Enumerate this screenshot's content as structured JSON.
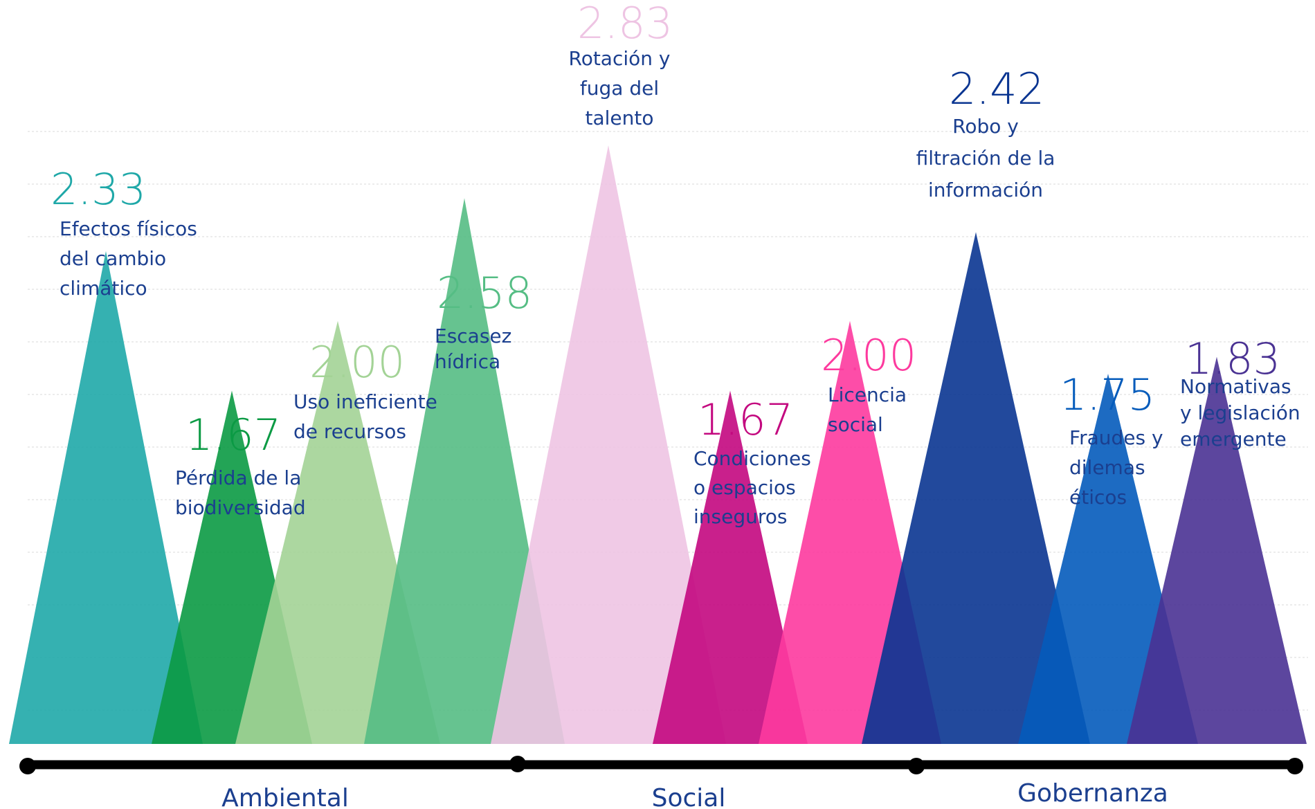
{
  "chart_data": {
    "type": "area",
    "title": "",
    "xlabel": "",
    "ylabel": "",
    "ylim": [
      0,
      2.9
    ],
    "grid": true,
    "categories": [
      "Ambiental",
      "Social",
      "Gobernanza"
    ],
    "series": [
      {
        "group": "Ambiental",
        "label_lines": [
          "Efectos físicos",
          "del cambio",
          "climático"
        ],
        "value": 2.33,
        "value_text": "2.33",
        "color": "#1fa8a8"
      },
      {
        "group": "Ambiental",
        "label_lines": [
          "Pérdida de la",
          "biodiversidad"
        ],
        "value": 1.67,
        "value_text": "1.67",
        "color": "#0b9a44"
      },
      {
        "group": "Ambiental",
        "label_lines": [
          "Uso ineficiente",
          "de recursos"
        ],
        "value": 2.0,
        "value_text": "2.00",
        "color": "#a3d396"
      },
      {
        "group": "Ambiental",
        "label_lines": [
          "Escasez",
          "hídrica"
        ],
        "value": 2.58,
        "value_text": "2.58",
        "color": "#55bd84"
      },
      {
        "group": "Social",
        "label_lines": [
          "Rotación y",
          "fuga del",
          "talento"
        ],
        "value": 2.83,
        "value_text": "2.83",
        "color": "#eec4e3"
      },
      {
        "group": "Social",
        "label_lines": [
          "Condiciones",
          "o espacios",
          "inseguros"
        ],
        "value": 1.67,
        "value_text": "1.67",
        "color": "#c3087f"
      },
      {
        "group": "Social",
        "label_lines": [
          "Licencia",
          "social"
        ],
        "value": 2.0,
        "value_text": "2.00",
        "color": "#fd3a9e"
      },
      {
        "group": "Gobernanza",
        "label_lines": [
          "Robo y",
          "filtración de la",
          "información"
        ],
        "value": 2.42,
        "value_text": "2.42",
        "color": "#0a3591"
      },
      {
        "group": "Gobernanza",
        "label_lines": [
          "Fraudes y",
          "dilemas",
          "éticos"
        ],
        "value": 1.75,
        "value_text": "1.75",
        "color": "#045bbb"
      },
      {
        "group": "Gobernanza",
        "label_lines": [
          "Normativas",
          "y legislación",
          "emergente"
        ],
        "value": 1.83,
        "value_text": "1.83",
        "color": "#4a3293"
      }
    ]
  }
}
